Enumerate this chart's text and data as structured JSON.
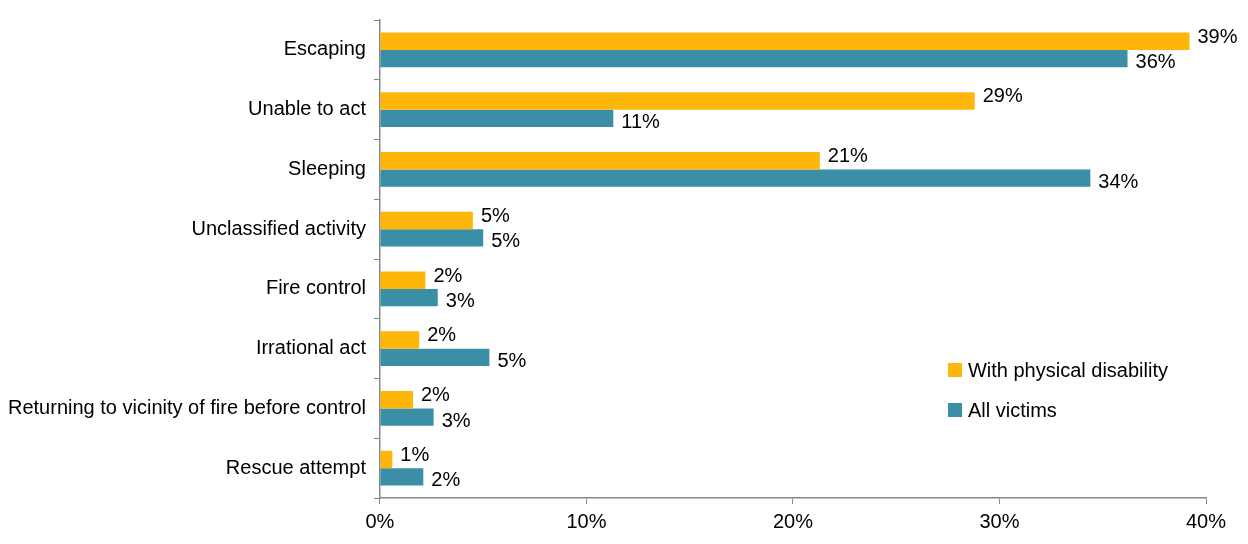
{
  "chart_data": {
    "type": "bar",
    "orientation": "horizontal",
    "categories": [
      "Escaping",
      "Unable to act",
      "Sleeping",
      "Unclassified activity",
      "Fire control",
      "Irrational act",
      "Returning to vicinity of fire before control",
      "Rescue attempt"
    ],
    "series": [
      {
        "name": "With physical disability",
        "color": "#ffb60a",
        "values": [
          39.2,
          28.8,
          21.3,
          4.5,
          2.2,
          1.9,
          1.6,
          0.6
        ],
        "value_labels": [
          "39%",
          "29%",
          "21%",
          "5%",
          "2%",
          "2%",
          "2%",
          "1%"
        ]
      },
      {
        "name": "All victims",
        "color": "#3a8fa6",
        "values": [
          36.2,
          11.3,
          34.4,
          5.0,
          2.8,
          5.3,
          2.6,
          2.1
        ],
        "value_labels": [
          "36%",
          "11%",
          "34%",
          "5%",
          "3%",
          "5%",
          "3%",
          "2%"
        ]
      }
    ],
    "xlim": [
      0,
      40
    ],
    "xticks": [
      {
        "value": 0,
        "label": "0%"
      },
      {
        "value": 10,
        "label": "10%"
      },
      {
        "value": 20,
        "label": "20%"
      },
      {
        "value": 30,
        "label": "30%"
      },
      {
        "value": 40,
        "label": "40%"
      }
    ],
    "grid": false,
    "legend": "right"
  }
}
